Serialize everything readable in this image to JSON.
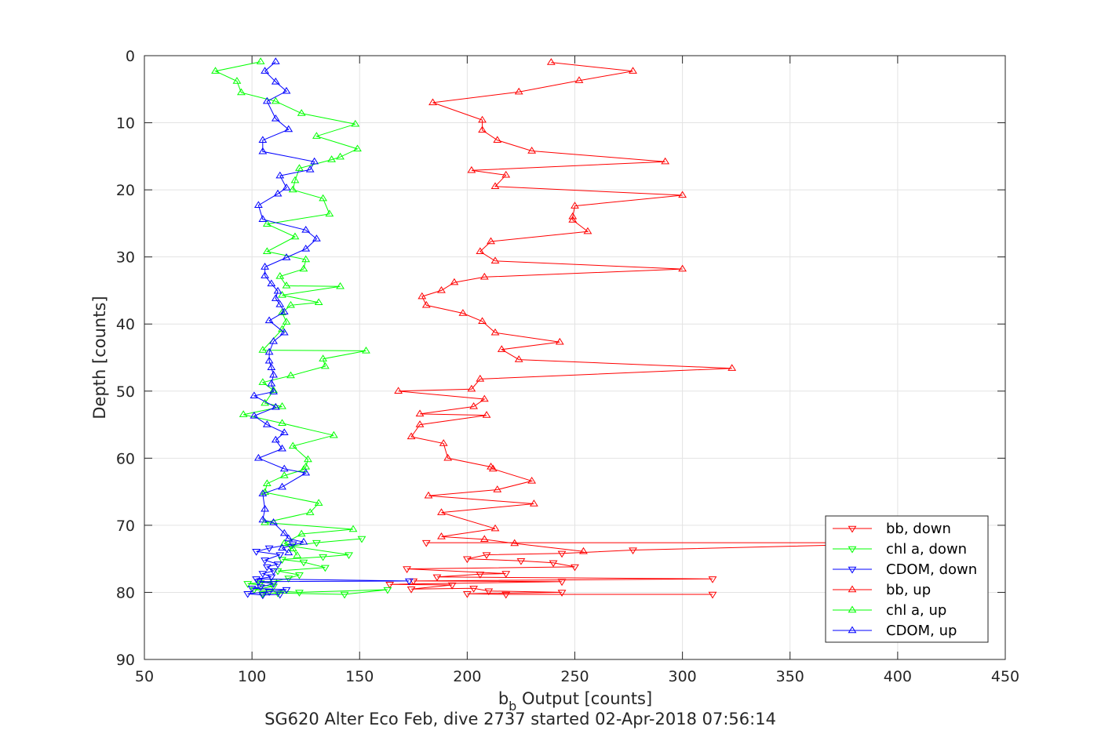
{
  "chart_data": {
    "type": "line",
    "xlabel_main": "b",
    "xlabel_sub": "b",
    "xlabel_rest": " Output [counts]",
    "ylabel": "Depth [counts]",
    "caption": "SG620 Alter Eco Feb, dive 2737 started 02-Apr-2018 07:56:14",
    "xlim": [
      50,
      450
    ],
    "ylim": [
      0,
      90
    ],
    "y_reversed": true,
    "grid": true,
    "legend_position": "bottom-right",
    "xticks": [
      "50",
      "100",
      "150",
      "200",
      "250",
      "300",
      "350",
      "400",
      "450"
    ],
    "yticks": [
      "0",
      "10",
      "20",
      "30",
      "40",
      "50",
      "60",
      "70",
      "80",
      "90"
    ],
    "series": [
      {
        "name": "bb, down",
        "color": "#ff0000",
        "marker": "triangle-down",
        "points": [
          [
            181,
            72.6
          ],
          [
            418,
            72.6
          ],
          [
            277,
            73.7
          ],
          [
            244,
            74.2
          ],
          [
            209,
            74.4
          ],
          [
            200,
            75.0
          ],
          [
            225,
            75.3
          ],
          [
            240,
            75.6
          ],
          [
            250,
            76.2
          ],
          [
            172,
            76.5
          ],
          [
            218,
            77.2
          ],
          [
            206,
            77.3
          ],
          [
            186,
            77.7
          ],
          [
            314,
            78.0
          ],
          [
            175,
            78.3
          ],
          [
            244,
            78.4
          ],
          [
            164,
            78.8
          ],
          [
            193,
            78.9
          ],
          [
            174,
            79.5
          ],
          [
            203,
            79.4
          ],
          [
            210,
            79.8
          ],
          [
            244,
            80.0
          ],
          [
            200,
            80.2
          ],
          [
            218,
            80.3
          ],
          [
            314,
            80.3
          ]
        ]
      },
      {
        "name": "chl a, down",
        "color": "#00ff00",
        "marker": "triangle-down",
        "points": [
          [
            151,
            72.0
          ],
          [
            130,
            72.6
          ],
          [
            118,
            73.1
          ],
          [
            145,
            74.4
          ],
          [
            133,
            74.7
          ],
          [
            114,
            75.1
          ],
          [
            124,
            75.5
          ],
          [
            134,
            76.3
          ],
          [
            112,
            76.8
          ],
          [
            122,
            77.4
          ],
          [
            117,
            77.9
          ],
          [
            110,
            78.4
          ],
          [
            104,
            78.6
          ],
          [
            98,
            78.7
          ],
          [
            110,
            79.1
          ],
          [
            101,
            79.6
          ],
          [
            122,
            80.0
          ],
          [
            163,
            79.6
          ],
          [
            143,
            80.3
          ],
          [
            112,
            80.1
          ],
          [
            105,
            80.2
          ]
        ]
      },
      {
        "name": "CDOM, down",
        "color": "#0000ff",
        "marker": "triangle-down",
        "points": [
          [
            119,
            72.8
          ],
          [
            108,
            73.4
          ],
          [
            102,
            73.9
          ],
          [
            113,
            74.4
          ],
          [
            106,
            75.2
          ],
          [
            112,
            75.8
          ],
          [
            107,
            76.2
          ],
          [
            110,
            76.8
          ],
          [
            105,
            77.2
          ],
          [
            109,
            77.7
          ],
          [
            102,
            78.0
          ],
          [
            173,
            78.3
          ],
          [
            103,
            78.4
          ],
          [
            110,
            78.7
          ],
          [
            104,
            79.2
          ],
          [
            100,
            79.4
          ],
          [
            116,
            79.6
          ],
          [
            108,
            79.9
          ],
          [
            98,
            80.2
          ],
          [
            105,
            80.4
          ],
          [
            113,
            80.3
          ]
        ]
      },
      {
        "name": "bb, up",
        "color": "#ff0000",
        "marker": "triangle-up",
        "points": [
          [
            239,
            1.0
          ],
          [
            277,
            2.3
          ],
          [
            252,
            3.7
          ],
          [
            224,
            5.4
          ],
          [
            184,
            7.0
          ],
          [
            207,
            9.6
          ],
          [
            207,
            11.1
          ],
          [
            214,
            12.6
          ],
          [
            230,
            14.2
          ],
          [
            292,
            15.8
          ],
          [
            202,
            17.1
          ],
          [
            218,
            17.8
          ],
          [
            213,
            19.5
          ],
          [
            300,
            20.8
          ],
          [
            250,
            22.4
          ],
          [
            249,
            24.0
          ],
          [
            249,
            24.5
          ],
          [
            256,
            26.2
          ],
          [
            211,
            27.7
          ],
          [
            206,
            29.2
          ],
          [
            213,
            30.6
          ],
          [
            300,
            31.8
          ],
          [
            208,
            33.0
          ],
          [
            194,
            33.8
          ],
          [
            188,
            35.0
          ],
          [
            179,
            35.9
          ],
          [
            181,
            37.2
          ],
          [
            198,
            38.4
          ],
          [
            207,
            39.6
          ],
          [
            213,
            41.3
          ],
          [
            243,
            42.7
          ],
          [
            216,
            43.8
          ],
          [
            224,
            45.3
          ],
          [
            323,
            46.6
          ],
          [
            206,
            48.2
          ],
          [
            202,
            49.7
          ],
          [
            168,
            50.0
          ],
          [
            208,
            51.2
          ],
          [
            203,
            52.3
          ],
          [
            178,
            53.4
          ],
          [
            209,
            53.6
          ],
          [
            178,
            55.0
          ],
          [
            174,
            56.8
          ],
          [
            189,
            57.8
          ],
          [
            191,
            60.0
          ],
          [
            211,
            61.3
          ],
          [
            212,
            61.6
          ],
          [
            230,
            63.4
          ],
          [
            214,
            64.7
          ],
          [
            182,
            65.6
          ],
          [
            231,
            66.8
          ],
          [
            188,
            68.1
          ],
          [
            213,
            70.5
          ],
          [
            188,
            71.7
          ],
          [
            208,
            72.1
          ],
          [
            222,
            72.7
          ],
          [
            254,
            73.9
          ]
        ]
      },
      {
        "name": "chl a, up",
        "color": "#00ff00",
        "marker": "triangle-up",
        "points": [
          [
            104,
            0.9
          ],
          [
            83,
            2.3
          ],
          [
            93,
            3.8
          ],
          [
            95,
            5.5
          ],
          [
            111,
            6.8
          ],
          [
            123,
            8.6
          ],
          [
            148,
            10.2
          ],
          [
            130,
            12.0
          ],
          [
            149,
            13.9
          ],
          [
            141,
            15.1
          ],
          [
            137,
            15.5
          ],
          [
            122,
            16.8
          ],
          [
            120,
            18.6
          ],
          [
            119,
            20.0
          ],
          [
            133,
            21.3
          ],
          [
            136,
            23.6
          ],
          [
            107,
            25.1
          ],
          [
            120,
            27.0
          ],
          [
            107,
            29.2
          ],
          [
            125,
            30.4
          ],
          [
            124,
            31.8
          ],
          [
            113,
            32.9
          ],
          [
            116,
            34.3
          ],
          [
            141,
            34.4
          ],
          [
            114,
            35.7
          ],
          [
            131,
            36.8
          ],
          [
            118,
            37.2
          ],
          [
            114,
            38.3
          ],
          [
            116,
            39.7
          ],
          [
            114,
            40.8
          ],
          [
            105,
            43.9
          ],
          [
            153,
            44.0
          ],
          [
            133,
            45.2
          ],
          [
            134,
            46.3
          ],
          [
            118,
            47.7
          ],
          [
            105,
            48.7
          ],
          [
            110,
            49.9
          ],
          [
            106,
            51.8
          ],
          [
            114,
            52.3
          ],
          [
            96,
            53.5
          ],
          [
            114,
            54.8
          ],
          [
            138,
            56.6
          ],
          [
            119,
            58.2
          ],
          [
            126,
            60.2
          ],
          [
            125,
            61.3
          ],
          [
            124,
            61.7
          ],
          [
            115,
            62.6
          ],
          [
            107,
            63.8
          ],
          [
            106,
            65.1
          ],
          [
            131,
            66.7
          ],
          [
            127,
            68.1
          ],
          [
            106,
            69.6
          ],
          [
            147,
            70.6
          ],
          [
            123,
            71.3
          ],
          [
            115,
            72.7
          ],
          [
            119,
            73.5
          ],
          [
            121,
            74.5
          ]
        ]
      },
      {
        "name": "CDOM, up",
        "color": "#0000ff",
        "marker": "triangle-up",
        "points": [
          [
            111,
            0.9
          ],
          [
            106,
            2.3
          ],
          [
            111,
            3.9
          ],
          [
            116,
            5.3
          ],
          [
            107,
            6.8
          ],
          [
            111,
            9.4
          ],
          [
            117,
            11.0
          ],
          [
            105,
            12.6
          ],
          [
            105,
            14.3
          ],
          [
            129,
            15.8
          ],
          [
            127,
            17.0
          ],
          [
            113,
            17.9
          ],
          [
            116,
            19.7
          ],
          [
            112,
            20.6
          ],
          [
            103,
            22.3
          ],
          [
            105,
            24.4
          ],
          [
            125,
            26.0
          ],
          [
            130,
            27.3
          ],
          [
            125,
            28.8
          ],
          [
            116,
            30.1
          ],
          [
            106,
            31.5
          ],
          [
            106,
            32.8
          ],
          [
            109,
            34.0
          ],
          [
            112,
            35.1
          ],
          [
            111,
            36.2
          ],
          [
            113,
            37.1
          ],
          [
            115,
            38.2
          ],
          [
            108,
            39.5
          ],
          [
            115,
            41.3
          ],
          [
            110,
            42.6
          ],
          [
            108,
            44.2
          ],
          [
            108,
            45.5
          ],
          [
            109,
            46.5
          ],
          [
            110,
            47.6
          ],
          [
            109,
            48.9
          ],
          [
            110,
            50.1
          ],
          [
            101,
            50.7
          ],
          [
            111,
            52.4
          ],
          [
            101,
            53.7
          ],
          [
            107,
            55.0
          ],
          [
            115,
            56.2
          ],
          [
            111,
            57.3
          ],
          [
            114,
            58.6
          ],
          [
            103,
            60.0
          ],
          [
            115,
            61.6
          ],
          [
            125,
            62.2
          ],
          [
            114,
            64.3
          ],
          [
            105,
            65.3
          ],
          [
            106,
            67.6
          ],
          [
            105,
            69.2
          ],
          [
            110,
            69.6
          ],
          [
            115,
            71.2
          ],
          [
            117,
            72.0
          ],
          [
            124,
            72.5
          ],
          [
            114,
            73.4
          ],
          [
            117,
            74.1
          ]
        ]
      }
    ]
  }
}
